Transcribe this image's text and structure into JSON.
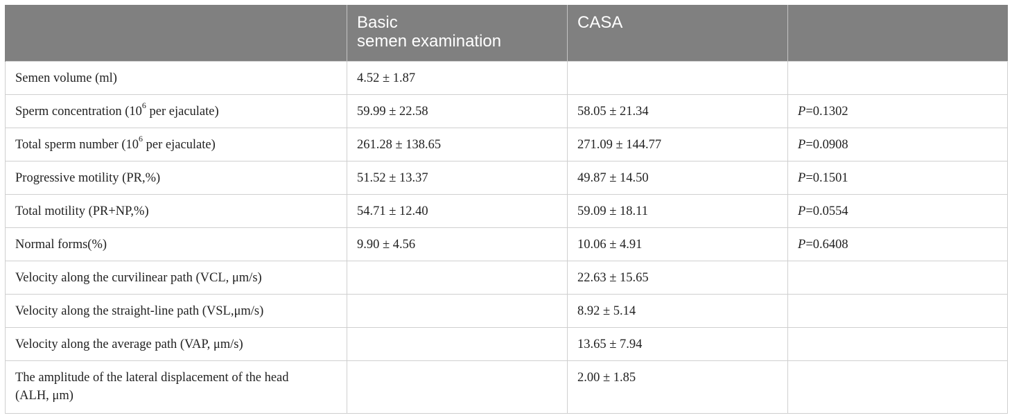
{
  "header": {
    "col1": "",
    "col2_line1": "Basic",
    "col2_line2": "semen examination",
    "col3": "CASA",
    "col4": ""
  },
  "rows": [
    {
      "label": "Semen volume (ml)",
      "basic": "4.52 ± 1.87",
      "casa": "",
      "p_prefix": "",
      "p_value": ""
    },
    {
      "label_pre": "Sperm concentration (10",
      "label_sup": "6",
      "label_post": " per ejaculate)",
      "basic": "59.99 ± 22.58",
      "casa": "58.05 ± 21.34",
      "p_prefix": "P",
      "p_value": "=0.1302"
    },
    {
      "label_pre": "Total sperm number (10",
      "label_sup": "6",
      "label_post": " per ejaculate)",
      "basic": "261.28 ± 138.65",
      "casa": "271.09 ± 144.77",
      "p_prefix": "P",
      "p_value": "=0.0908"
    },
    {
      "label": "Progressive motility (PR,%)",
      "basic": "51.52 ± 13.37",
      "casa": "49.87 ± 14.50",
      "p_prefix": "P",
      "p_value": "=0.1501"
    },
    {
      "label": "Total motility (PR+NP,%)",
      "basic": "54.71 ± 12.40",
      "casa": "59.09 ± 18.11",
      "p_prefix": "P",
      "p_value": "=0.0554"
    },
    {
      "label": "Normal forms(%)",
      "basic": "9.90 ± 4.56",
      "casa": "10.06 ± 4.91",
      "p_prefix": "P",
      "p_value": "=0.6408"
    },
    {
      "label": "Velocity along the curvilinear path (VCL, μm/s)",
      "basic": "",
      "casa": "22.63 ± 15.65",
      "p_prefix": "",
      "p_value": ""
    },
    {
      "label": "Velocity along the straight-line path (VSL,μm/s)",
      "basic": "",
      "casa": "8.92 ± 5.14",
      "p_prefix": "",
      "p_value": ""
    },
    {
      "label": "Velocity along the average path (VAP, μm/s)",
      "basic": "",
      "casa": "13.65 ± 7.94",
      "p_prefix": "",
      "p_value": ""
    },
    {
      "label_line1": "The amplitude of the lateral displacement of the head",
      "label_line2": "(ALH, μm)",
      "basic": "",
      "casa": "2.00 ± 1.85",
      "p_prefix": "",
      "p_value": ""
    }
  ]
}
